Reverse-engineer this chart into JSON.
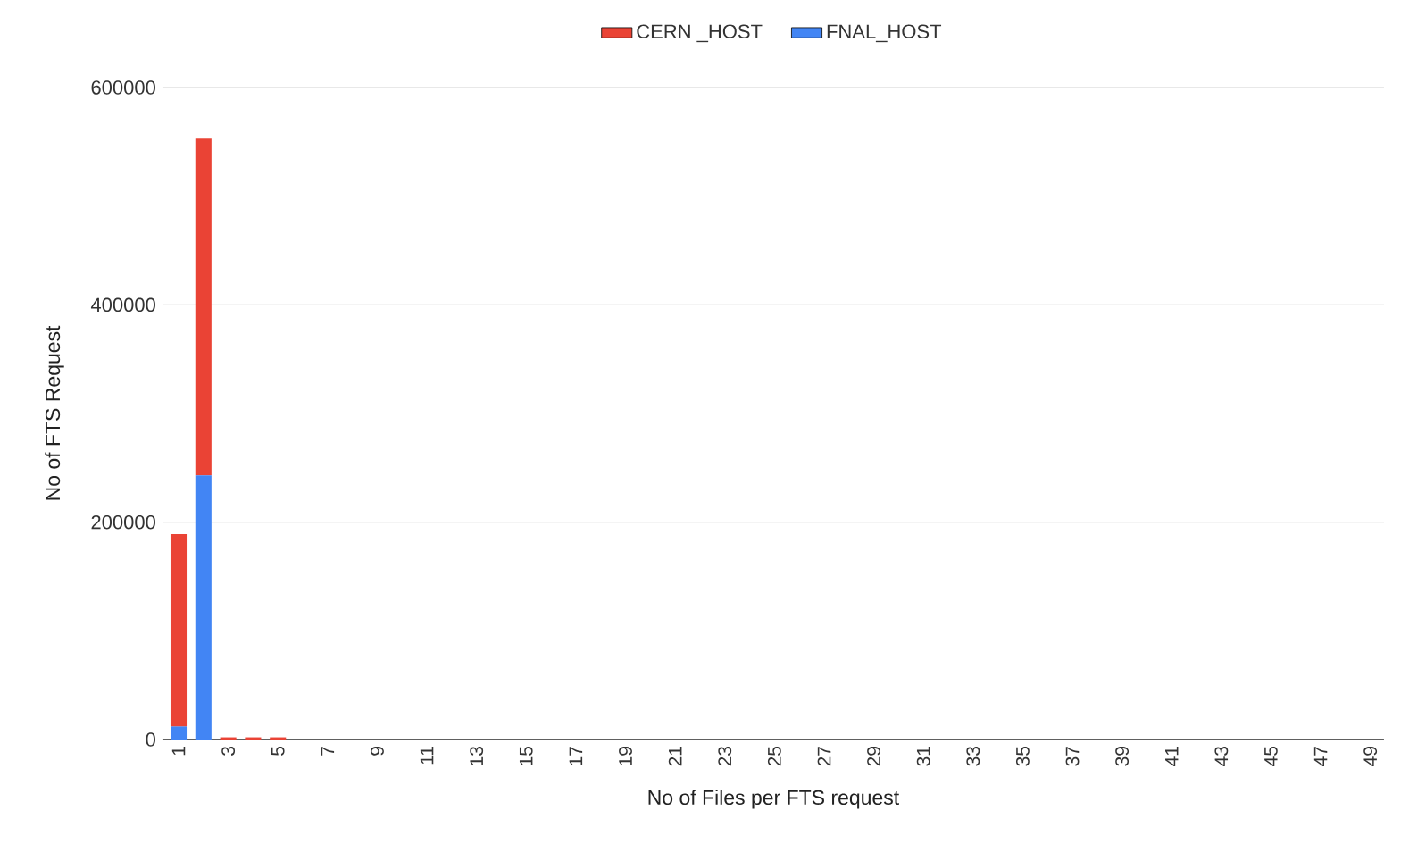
{
  "chart_data": {
    "type": "bar",
    "stacked": true,
    "xlabel": "No of Files per FTS request",
    "ylabel": "No of FTS Request",
    "categories": [
      "1",
      null,
      "3",
      null,
      "5",
      null,
      "7",
      null,
      "9",
      null,
      "11",
      null,
      "13",
      null,
      "15",
      null,
      "17",
      null,
      "19",
      null,
      "21",
      null,
      "23",
      null,
      "25",
      null,
      "27",
      null,
      "29",
      null,
      "31",
      null,
      "33",
      null,
      "35",
      null,
      "37",
      null,
      "39",
      null,
      "41",
      null,
      "43",
      null,
      "45",
      null,
      "47",
      null,
      "49"
    ],
    "series": [
      {
        "name": "FNAL_HOST",
        "color": "#4285f4",
        "values": [
          12000,
          243000,
          0,
          0,
          0,
          0,
          0,
          0,
          0,
          0,
          0,
          0,
          0,
          0,
          0,
          0,
          0,
          0,
          0,
          0,
          0,
          0,
          0,
          0,
          0,
          0,
          0,
          0,
          0,
          0,
          0,
          0,
          0,
          0,
          0,
          0,
          0,
          0,
          0,
          0,
          0,
          0,
          0,
          0,
          0,
          0,
          0,
          0,
          0
        ]
      },
      {
        "name": "CERN _HOST",
        "color": "#ea4335",
        "values": [
          177000,
          310000,
          2000,
          2000,
          2000,
          0,
          0,
          0,
          0,
          0,
          0,
          0,
          0,
          0,
          0,
          0,
          0,
          0,
          0,
          0,
          0,
          0,
          0,
          0,
          0,
          0,
          0,
          0,
          0,
          0,
          0,
          0,
          0,
          0,
          0,
          0,
          0,
          0,
          0,
          0,
          0,
          0,
          0,
          0,
          0,
          0,
          0,
          0,
          0
        ]
      }
    ],
    "ylim": [
      0,
      600000
    ],
    "yticks": [
      0,
      200000,
      400000,
      600000
    ],
    "grid": "y",
    "legend": "top"
  }
}
